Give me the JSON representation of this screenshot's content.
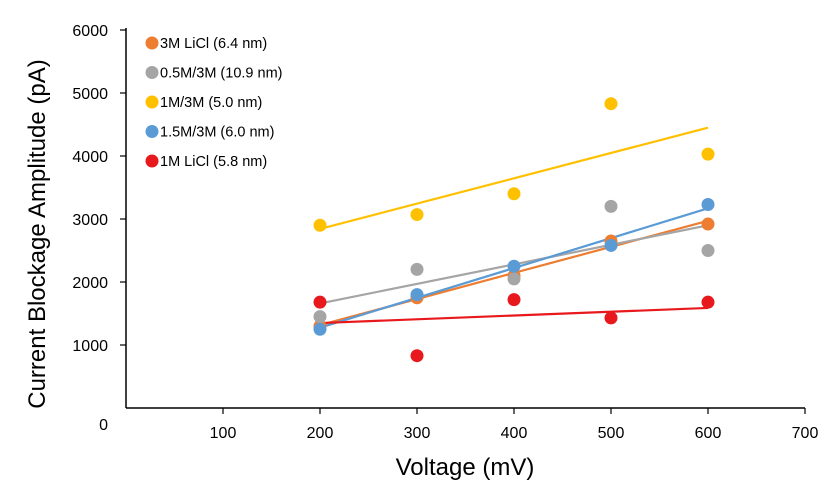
{
  "chart_data": {
    "type": "scatter",
    "xlabel": "Voltage (mV)",
    "ylabel": "Current Blockage Amplitude (pA)",
    "xlim": [
      0,
      700
    ],
    "ylim": [
      0,
      6000
    ],
    "x_ticks": [
      "100",
      "200",
      "300",
      "400",
      "500",
      "600",
      "700"
    ],
    "x_tick_values": [
      100,
      200,
      300,
      400,
      500,
      600,
      700
    ],
    "y_ticks": [
      "0",
      "1000",
      "2000",
      "3000",
      "4000",
      "5000",
      "6000"
    ],
    "y_tick_values": [
      0,
      1000,
      2000,
      3000,
      4000,
      5000,
      6000
    ],
    "grid": false,
    "legend_position": "top-left",
    "trendlines": "linear",
    "series": [
      {
        "name": "3M LiCl (6.4 nm)",
        "color": "#ED7D31",
        "x": [
          200,
          300,
          400,
          500,
          600
        ],
        "y": [
          1300,
          1750,
          2100,
          2650,
          2920
        ]
      },
      {
        "name": "0.5M/3M (10.9 nm)",
        "color": "#A5A5A5",
        "x": [
          200,
          300,
          400,
          500,
          600
        ],
        "y": [
          1450,
          2200,
          2050,
          3200,
          2500
        ]
      },
      {
        "name": "1M/3M (5.0 nm)",
        "color": "#FFC000",
        "x": [
          200,
          300,
          400,
          500,
          600
        ],
        "y": [
          2900,
          3070,
          3400,
          4830,
          4030
        ]
      },
      {
        "name": "1.5M/3M (6.0 nm)",
        "color": "#5B9BD5",
        "x": [
          200,
          300,
          400,
          500,
          600
        ],
        "y": [
          1250,
          1800,
          2250,
          2580,
          3230
        ]
      },
      {
        "name": "1M LiCl (5.8 nm)",
        "color": "#E8191C",
        "x": [
          200,
          300,
          400,
          500,
          600
        ],
        "y": [
          1680,
          830,
          1720,
          1430,
          1680
        ]
      }
    ]
  }
}
